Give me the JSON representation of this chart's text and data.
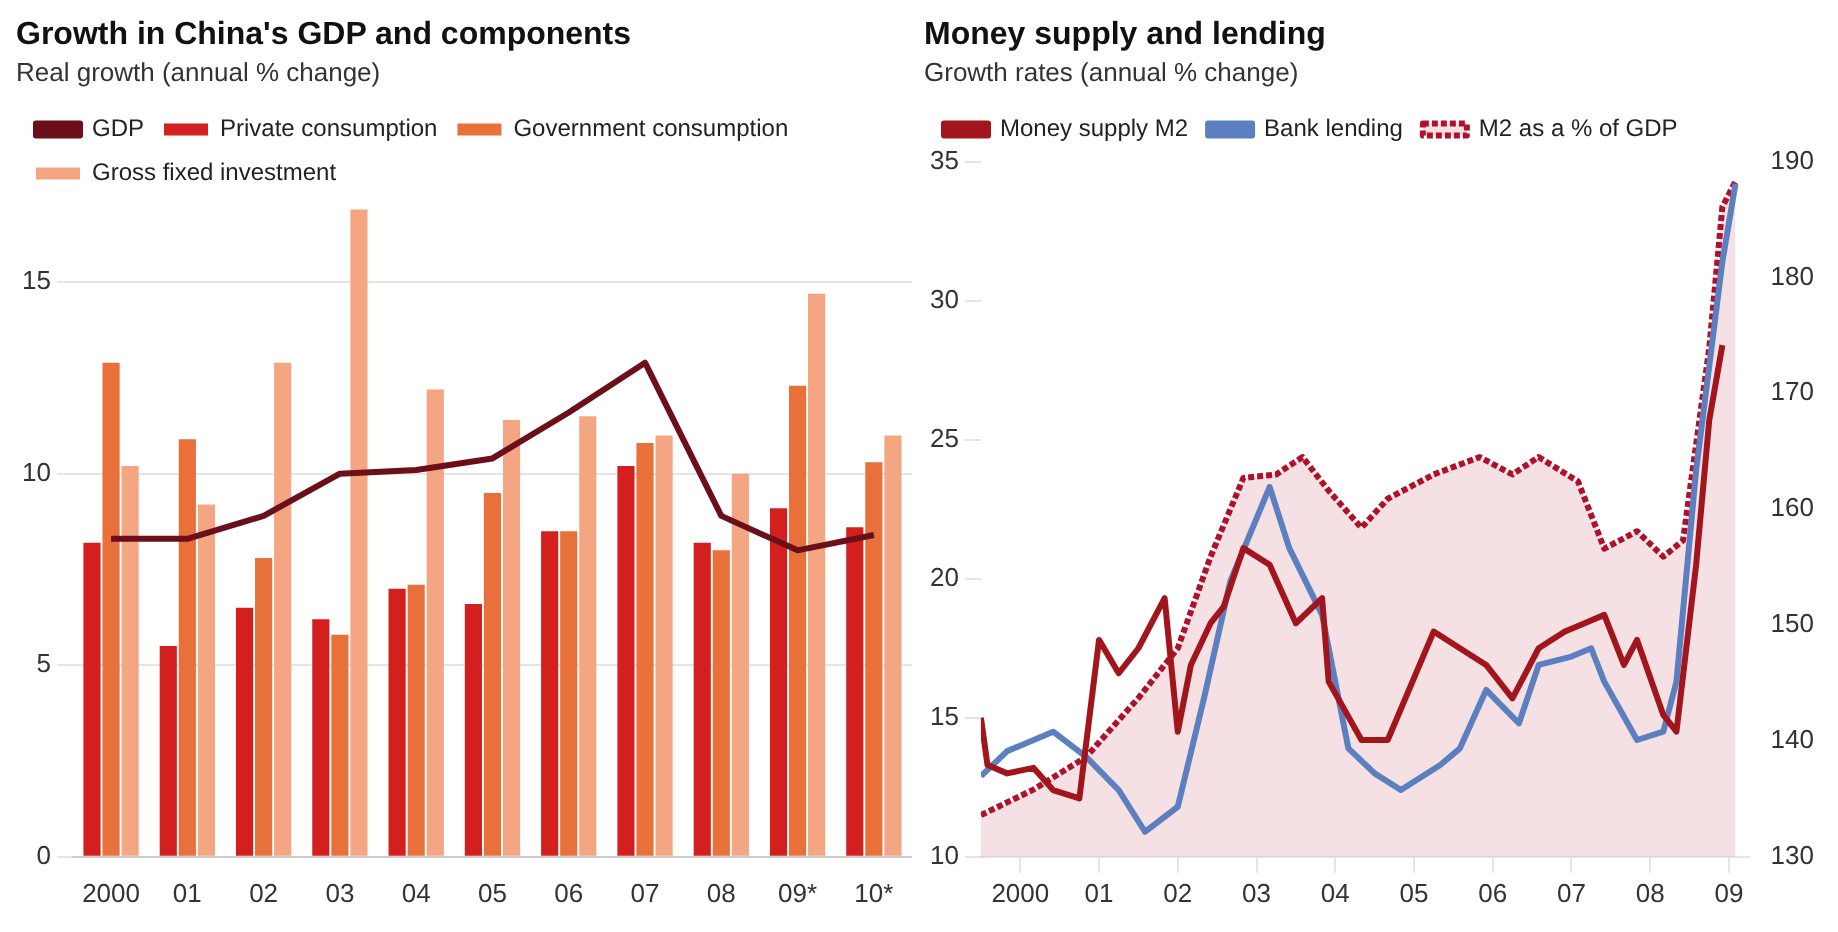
{
  "chart_data": [
    {
      "type": "bar",
      "title": "Growth in China's GDP and components",
      "subtitle": "Real growth (annual % change)",
      "categories": [
        "2000",
        "01",
        "02",
        "03",
        "04",
        "05",
        "06",
        "07",
        "08",
        "09*",
        "10*"
      ],
      "series": [
        {
          "name": "GDP",
          "type": "line",
          "color": "#6b0f1a",
          "values": [
            8.3,
            8.3,
            8.9,
            10.0,
            10.1,
            10.4,
            11.6,
            12.9,
            8.9,
            8.0,
            8.4
          ]
        },
        {
          "name": "Private consumption",
          "color": "#d3201f",
          "values": [
            8.2,
            5.5,
            6.5,
            6.2,
            7.0,
            6.6,
            8.5,
            10.2,
            8.2,
            9.1,
            8.6
          ]
        },
        {
          "name": "Government consumption",
          "color": "#e8703a",
          "values": [
            12.9,
            10.9,
            7.8,
            5.8,
            7.1,
            9.5,
            8.5,
            10.8,
            8.0,
            12.3,
            10.3
          ]
        },
        {
          "name": "Gross fixed investment",
          "color": "#f4a582",
          "values": [
            10.2,
            9.2,
            12.9,
            16.9,
            12.2,
            11.4,
            11.5,
            11.0,
            10.0,
            14.7,
            11.0
          ]
        }
      ],
      "ylim": [
        0,
        17
      ],
      "yticks": [
        0,
        5,
        10,
        15
      ],
      "grid": "y",
      "legend": "top"
    },
    {
      "type": "line",
      "title": "Money supply and lending",
      "subtitle": "Growth rates (annual % change)",
      "series": [
        {
          "name": "Money supply M2",
          "color": "#a3151c",
          "x": [
            "2000-01",
            "2000-02",
            "2000-05",
            "2000-09",
            "2000-12",
            "2001-04",
            "2001-07",
            "2001-10",
            "2002-01",
            "2002-05",
            "2002-07",
            "2002-09",
            "2002-12",
            "2003-02",
            "2003-05",
            "2003-09",
            "2004-01",
            "2004-05",
            "2004-06",
            "2004-11",
            "2005-03",
            "2005-10",
            "2006-02",
            "2006-06",
            "2006-10",
            "2007-02",
            "2007-06",
            "2007-09",
            "2007-12",
            "2008-03",
            "2008-05",
            "2008-09",
            "2008-11",
            "2009-02",
            "2009-04",
            "2009-06"
          ],
          "values": [
            15.0,
            13.3,
            13.0,
            13.2,
            12.4,
            12.1,
            17.8,
            16.6,
            17.5,
            19.3,
            14.5,
            16.9,
            18.4,
            19.0,
            21.1,
            20.5,
            18.4,
            19.3,
            16.3,
            14.2,
            14.2,
            18.1,
            17.5,
            16.9,
            15.7,
            17.5,
            18.1,
            18.4,
            18.7,
            16.9,
            17.8,
            15.1,
            14.5,
            20.5,
            25.7,
            28.4
          ]
        },
        {
          "name": "Bank lending",
          "color": "#5b7fbf",
          "x": [
            "2000-01",
            "2000-05",
            "2000-12",
            "2001-05",
            "2001-10",
            "2002-02",
            "2002-07",
            "2002-11",
            "2003-03",
            "2003-09",
            "2003-12",
            "2004-05",
            "2004-09",
            "2005-01",
            "2005-05",
            "2005-11",
            "2006-02",
            "2006-06",
            "2006-11",
            "2007-02",
            "2007-07",
            "2007-10",
            "2007-12",
            "2008-05",
            "2008-09",
            "2008-11",
            "2009-02",
            "2009-06",
            "2009-08"
          ],
          "values": [
            12.9,
            13.8,
            14.5,
            13.6,
            12.4,
            10.9,
            11.8,
            15.7,
            19.9,
            23.3,
            21.1,
            18.7,
            13.9,
            13.0,
            12.4,
            13.3,
            13.9,
            16.0,
            14.8,
            16.9,
            17.2,
            17.5,
            16.3,
            14.2,
            14.5,
            16.3,
            23.9,
            31.4,
            34.2
          ]
        },
        {
          "name": "M2 as a % of GDP",
          "type": "area",
          "color": "#b0102a",
          "line_style": "dotted",
          "axis": "y2",
          "x": [
            "2000-01",
            "2000-09",
            "2001-05",
            "2002-01",
            "2002-07",
            "2002-12",
            "2003-05",
            "2003-10",
            "2004-02",
            "2004-06",
            "2004-11",
            "2005-03",
            "2005-10",
            "2006-05",
            "2006-10",
            "2007-02",
            "2007-08",
            "2007-12",
            "2008-05",
            "2008-09",
            "2008-12",
            "2009-04",
            "2009-06",
            "2009-08"
          ],
          "values": [
            133.6,
            135.8,
            138.6,
            143.7,
            148,
            155.9,
            162.7,
            163,
            164.5,
            161.6,
            158.4,
            160.9,
            163,
            164.5,
            163,
            164.5,
            162.4,
            156.6,
            158.1,
            155.9,
            157.3,
            173.9,
            186.1,
            188.3
          ]
        }
      ],
      "xlim": [
        "2000-01",
        "2009-10"
      ],
      "xticks": [
        {
          "value": "2000-07",
          "label": "2000"
        },
        {
          "value": "2001-07",
          "label": "01"
        },
        {
          "value": "2002-07",
          "label": "02"
        },
        {
          "value": "2003-07",
          "label": "03"
        },
        {
          "value": "2004-07",
          "label": "04"
        },
        {
          "value": "2005-07",
          "label": "05"
        },
        {
          "value": "2006-07",
          "label": "06"
        },
        {
          "value": "2007-07",
          "label": "07"
        },
        {
          "value": "2008-07",
          "label": "08"
        },
        {
          "value": "2009-07",
          "label": "09"
        }
      ],
      "ylim": [
        10,
        35
      ],
      "yticks": [
        10,
        15,
        20,
        25,
        30,
        35
      ],
      "y2lim": [
        130,
        190
      ],
      "y2ticks": [
        130,
        140,
        150,
        160,
        170,
        180,
        190
      ],
      "legend": "top"
    }
  ]
}
